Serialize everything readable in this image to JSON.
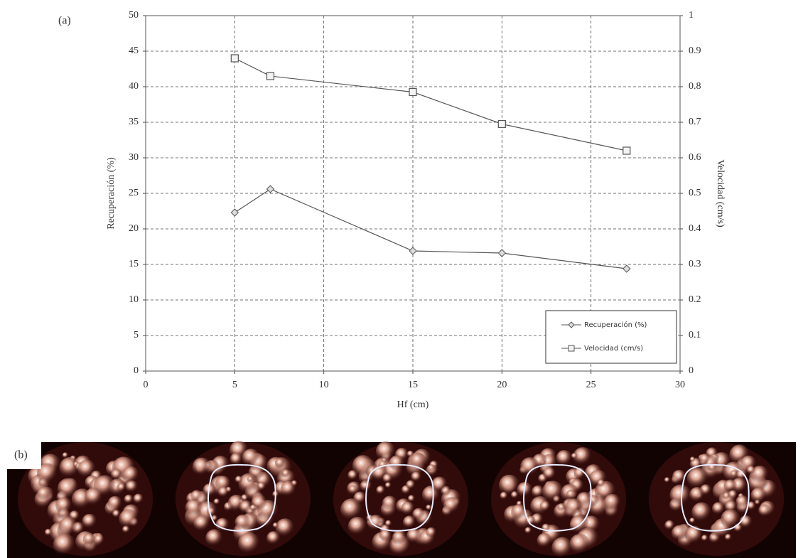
{
  "panel_labels": [
    "(a)",
    "(b)"
  ],
  "chart_data": {
    "type": "line",
    "xlabel": "Hf (cm)",
    "ylabel": "Recuperación (%)",
    "y2label": "Velocidad (cm/s)",
    "x": [
      5,
      7,
      15,
      20,
      27
    ],
    "series": [
      {
        "name": "Recuperación (%)",
        "color": "#555555",
        "marker": "diamond",
        "values": [
          22.3,
          25.6,
          16.9,
          16.6,
          14.4
        ]
      },
      {
        "name": "Velocidad (cm/s)",
        "color": "#555555",
        "marker": "square",
        "axis": "y2",
        "values": [
          0.88,
          0.83,
          0.785,
          0.695,
          0.62
        ]
      }
    ],
    "xlim": [
      0,
      30
    ],
    "xticks": [
      0,
      5,
      10,
      15,
      20,
      25,
      30
    ],
    "ylim": [
      0,
      50
    ],
    "yticks": [
      0,
      5,
      10,
      15,
      20,
      25,
      30,
      35,
      40,
      45,
      50
    ],
    "y2lim": [
      0,
      1
    ],
    "y2ticks": [
      0,
      0.1,
      0.2,
      0.3,
      0.4,
      0.5,
      0.6,
      0.7,
      0.8,
      0.9,
      1
    ],
    "grid": true,
    "legend": "lower right"
  }
}
